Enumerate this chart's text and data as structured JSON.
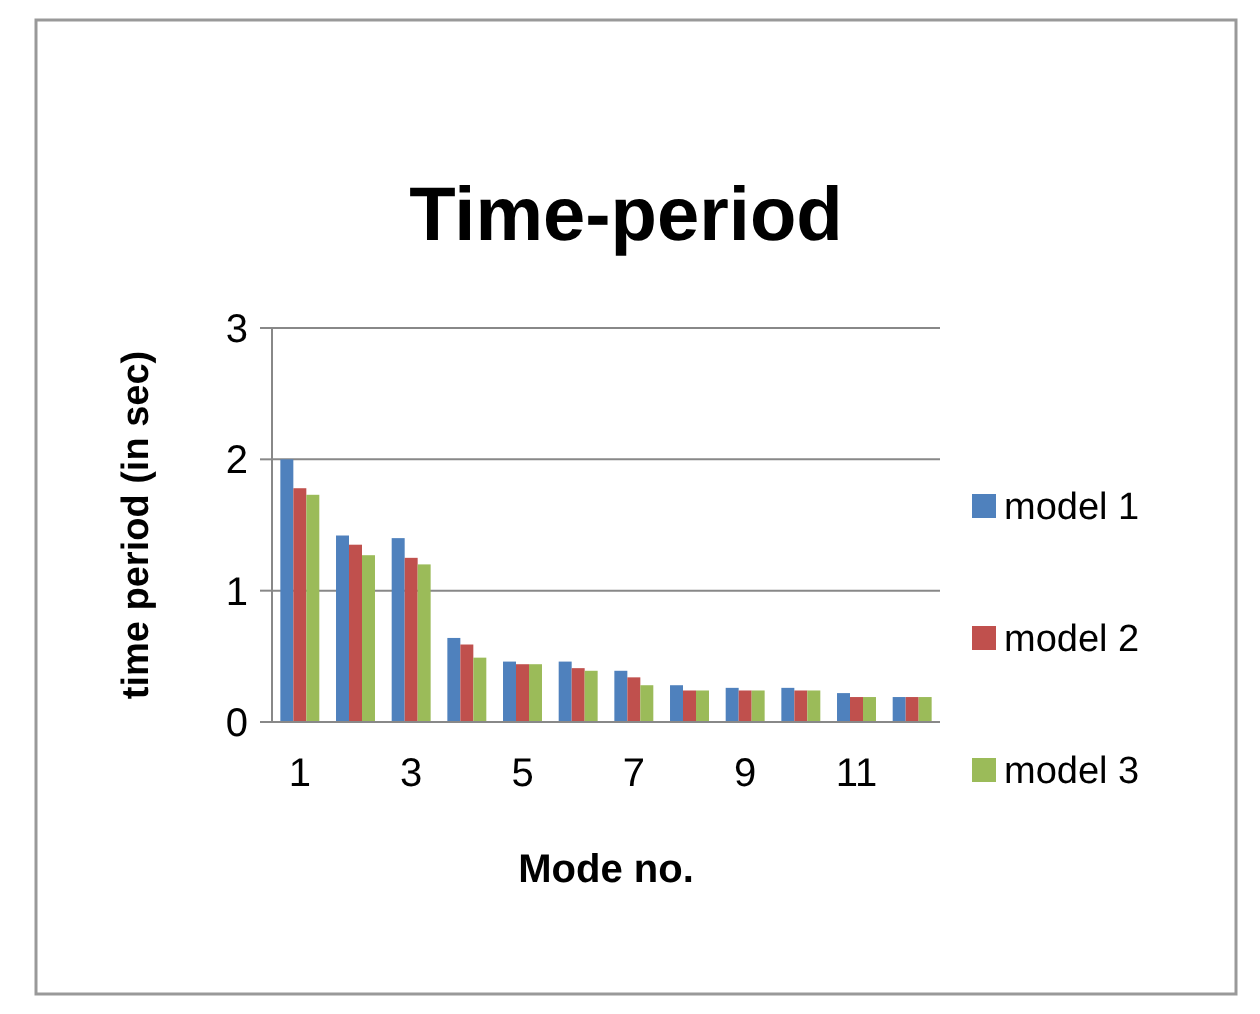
{
  "chart_data": {
    "type": "bar",
    "title": "Time-period",
    "xlabel": "Mode no.",
    "ylabel": "time period  (in sec)",
    "categories": [
      "1",
      null,
      "3",
      null,
      "5",
      null,
      "7",
      null,
      "9",
      null,
      "11",
      null
    ],
    "series": [
      {
        "name": "model 1",
        "color": "#4f81bd",
        "values": [
          2.0,
          1.42,
          1.4,
          0.64,
          0.46,
          0.46,
          0.39,
          0.28,
          0.26,
          0.26,
          0.22,
          0.19
        ]
      },
      {
        "name": "model 2",
        "color": "#c0504d",
        "values": [
          1.78,
          1.35,
          1.25,
          0.59,
          0.44,
          0.41,
          0.34,
          0.24,
          0.24,
          0.24,
          0.19,
          0.19
        ]
      },
      {
        "name": "model 3",
        "color": "#9bbb59",
        "values": [
          1.73,
          1.27,
          1.2,
          0.49,
          0.44,
          0.39,
          0.28,
          0.24,
          0.24,
          0.24,
          0.19,
          0.19
        ]
      }
    ],
    "ylim": [
      0,
      3
    ],
    "yticks": [
      0,
      1,
      2,
      3
    ],
    "grid": "y",
    "legend": "right"
  }
}
